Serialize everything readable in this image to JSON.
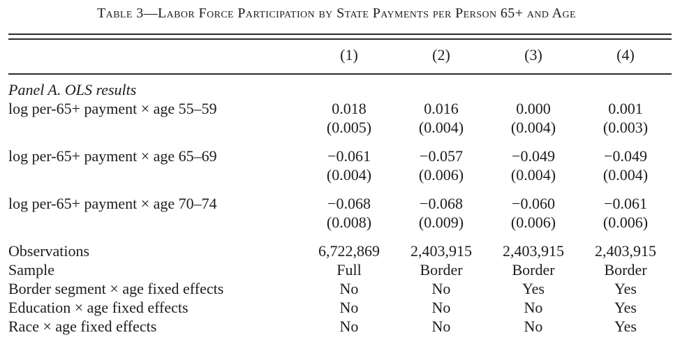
{
  "table": {
    "title": "Table 3—Labor Force Participation by State Payments per Person 65+ and Age",
    "columns": [
      "(1)",
      "(2)",
      "(3)",
      "(4)"
    ],
    "panel_label": "Panel A. OLS results",
    "coef_rows": [
      {
        "label": "log per-65+ payment × age 55–59",
        "coefs": [
          "0.018",
          "0.016",
          "0.000",
          "0.001"
        ],
        "ses": [
          "(0.005)",
          "(0.004)",
          "(0.004)",
          "(0.003)"
        ]
      },
      {
        "label": "log per-65+ payment × age 65–69",
        "coefs": [
          "−0.061",
          "−0.057",
          "−0.049",
          "−0.049"
        ],
        "ses": [
          "(0.004)",
          "(0.006)",
          "(0.004)",
          "(0.004)"
        ]
      },
      {
        "label": "log per-65+ payment × age 70–74",
        "coefs": [
          "−0.068",
          "−0.068",
          "−0.060",
          "−0.061"
        ],
        "ses": [
          "(0.008)",
          "(0.009)",
          "(0.006)",
          "(0.006)"
        ]
      }
    ],
    "summary_rows": [
      {
        "label": "Observations",
        "values": [
          "6,722,869",
          "2,403,915",
          "2,403,915",
          "2,403,915"
        ]
      },
      {
        "label": "Sample",
        "values": [
          "Full",
          "Border",
          "Border",
          "Border"
        ]
      },
      {
        "label": "Border segment × age fixed effects",
        "values": [
          "No",
          "No",
          "Yes",
          "Yes"
        ]
      },
      {
        "label": "Education × age fixed effects",
        "values": [
          "No",
          "No",
          "No",
          "Yes"
        ]
      },
      {
        "label": "Race × age fixed effects",
        "values": [
          "No",
          "No",
          "No",
          "Yes"
        ]
      }
    ]
  }
}
